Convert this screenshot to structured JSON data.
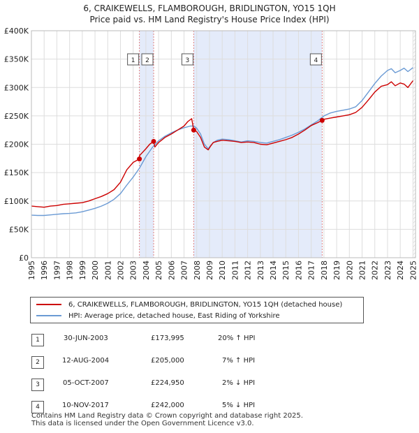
{
  "title": {
    "line1": "6, CRAIKEWELLS, FLAMBOROUGH, BRIDLINGTON, YO15 1QH",
    "line2": "Price paid vs. HM Land Registry's House Price Index (HPI)"
  },
  "colors": {
    "property": "#cc0000",
    "hpi": "#6a9ad4",
    "shade": "#e4ebfa",
    "marker_line": "#e08080"
  },
  "chart_data": {
    "type": "line",
    "title": "Price paid vs. HM Land Registry's House Price Index (HPI)",
    "xlabel": "",
    "ylabel": "",
    "xlim": [
      1995,
      2025.2
    ],
    "ylim": [
      0,
      400000
    ],
    "y_ticks": [
      0,
      50000,
      100000,
      150000,
      200000,
      250000,
      300000,
      350000,
      400000
    ],
    "y_tick_labels": [
      "£0",
      "£50K",
      "£100K",
      "£150K",
      "£200K",
      "£250K",
      "£300K",
      "£350K",
      "£400K"
    ],
    "x_ticks": [
      1995,
      1996,
      1997,
      1998,
      1999,
      2000,
      2001,
      2002,
      2003,
      2004,
      2005,
      2006,
      2007,
      2008,
      2009,
      2010,
      2011,
      2012,
      2013,
      2014,
      2015,
      2016,
      2017,
      2018,
      2019,
      2020,
      2021,
      2022,
      2023,
      2024,
      2025
    ],
    "x_tick_labels": [
      "1995",
      "1996",
      "1997",
      "1998",
      "1999",
      "2000",
      "2001",
      "2002",
      "2003",
      "2004",
      "2005",
      "2006",
      "2007",
      "2008",
      "2009",
      "2010",
      "2011",
      "2012",
      "2013",
      "2014",
      "2015",
      "2016",
      "2017",
      "2018",
      "2019",
      "2020",
      "2021",
      "2022",
      "2023",
      "2024",
      "2025"
    ],
    "grid": true,
    "series": [
      {
        "name": "6, CRAIKEWELLS, FLAMBOROUGH, BRIDLINGTON, YO15 1QH (detached house)",
        "x": [
          1995,
          1995.5,
          1996,
          1996.5,
          1997,
          1997.5,
          1998,
          1998.5,
          1999,
          1999.5,
          2000,
          2000.5,
          2001,
          2001.5,
          2002,
          2002.5,
          2003,
          2003.49,
          2003.5,
          2004,
          2004.3,
          2004.61,
          2004.7,
          2005,
          2005.5,
          2006,
          2006.5,
          2007,
          2007.3,
          2007.6,
          2007.76,
          2008,
          2008.3,
          2008.6,
          2008.9,
          2009.1,
          2009.3,
          2009.6,
          2010,
          2010.5,
          2011,
          2011.5,
          2012,
          2012.5,
          2013,
          2013.5,
          2014,
          2014.5,
          2015,
          2015.5,
          2016,
          2016.5,
          2017,
          2017.5,
          2017.86,
          2018,
          2018.5,
          2019,
          2019.5,
          2020,
          2020.5,
          2021,
          2021.5,
          2022,
          2022.5,
          2023,
          2023.3,
          2023.6,
          2024,
          2024.3,
          2024.6,
          2025
        ],
        "values": [
          91000,
          90000,
          89000,
          91000,
          92000,
          94000,
          95000,
          96000,
          97000,
          100000,
          104000,
          108000,
          113000,
          120000,
          133000,
          155000,
          168000,
          173995,
          180000,
          192000,
          200000,
          205000,
          195000,
          203000,
          212000,
          218000,
          225000,
          232000,
          240000,
          245000,
          224950,
          222000,
          212000,
          195000,
          190000,
          197000,
          203000,
          205000,
          207000,
          206000,
          205000,
          203000,
          204000,
          203000,
          200000,
          199000,
          202000,
          205000,
          208000,
          212000,
          218000,
          225000,
          233000,
          238000,
          242000,
          244000,
          246000,
          248000,
          250000,
          252000,
          256000,
          265000,
          278000,
          292000,
          302000,
          305000,
          310000,
          303000,
          308000,
          306000,
          300000,
          312000
        ]
      },
      {
        "name": "HPI: Average price, detached house, East Riding of Yorkshire",
        "x": [
          1995,
          1995.5,
          1996,
          1996.5,
          1997,
          1997.5,
          1998,
          1998.5,
          1999,
          1999.5,
          2000,
          2000.5,
          2001,
          2001.5,
          2002,
          2002.5,
          2003,
          2003.5,
          2004,
          2004.5,
          2005,
          2005.5,
          2006,
          2006.5,
          2007,
          2007.5,
          2007.8,
          2008,
          2008.3,
          2008.6,
          2008.9,
          2009.1,
          2009.3,
          2009.6,
          2010,
          2010.5,
          2011,
          2011.5,
          2012,
          2012.5,
          2013,
          2013.5,
          2014,
          2014.5,
          2015,
          2015.5,
          2016,
          2016.5,
          2017,
          2017.5,
          2018,
          2018.5,
          2019,
          2019.5,
          2020,
          2020.5,
          2021,
          2021.5,
          2022,
          2022.5,
          2023,
          2023.3,
          2023.6,
          2024,
          2024.3,
          2024.6,
          2025
        ],
        "values": [
          75000,
          74500,
          74500,
          75500,
          76500,
          77500,
          78000,
          79000,
          81000,
          84000,
          87000,
          91000,
          96000,
          103000,
          113000,
          128000,
          142000,
          158000,
          178000,
          194000,
          206000,
          214000,
          220000,
          225000,
          229000,
          232000,
          232000,
          228000,
          218000,
          200000,
          192000,
          198000,
          203000,
          207000,
          209000,
          208000,
          206000,
          204000,
          206000,
          205000,
          203000,
          202000,
          205000,
          208000,
          212000,
          216000,
          221000,
          227000,
          234000,
          241000,
          250000,
          255000,
          258000,
          260000,
          262000,
          266000,
          277000,
          292000,
          307000,
          320000,
          330000,
          333000,
          326000,
          330000,
          334000,
          328000,
          335000
        ]
      }
    ],
    "sales": [
      {
        "num": "1",
        "x": 2003.49,
        "value": 173995
      },
      {
        "num": "2",
        "x": 2004.61,
        "value": 205000
      },
      {
        "num": "3",
        "x": 2007.76,
        "value": 224950
      },
      {
        "num": "4",
        "x": 2017.86,
        "value": 242000
      }
    ],
    "shaded_ranges": [
      [
        2003.49,
        2004.61
      ],
      [
        2007.76,
        2017.86
      ]
    ],
    "hatch_from": 2025.0
  },
  "legend": {
    "property_label": "6, CRAIKEWELLS, FLAMBOROUGH, BRIDLINGTON, YO15 1QH (detached house)",
    "hpi_label": "HPI: Average price, detached house, East Riding of Yorkshire"
  },
  "sales_table": [
    {
      "num": "1",
      "date": "30-JUN-2003",
      "price": "£173,995",
      "hpi": "20% ↑ HPI"
    },
    {
      "num": "2",
      "date": "12-AUG-2004",
      "price": "£205,000",
      "hpi": "7% ↑ HPI"
    },
    {
      "num": "3",
      "date": "05-OCT-2007",
      "price": "£224,950",
      "hpi": "2% ↓ HPI"
    },
    {
      "num": "4",
      "date": "10-NOV-2017",
      "price": "£242,000",
      "hpi": "5% ↓ HPI"
    }
  ],
  "footer": {
    "line1": "Contains HM Land Registry data © Crown copyright and database right 2025.",
    "line2": "This data is licensed under the Open Government Licence v3.0."
  }
}
